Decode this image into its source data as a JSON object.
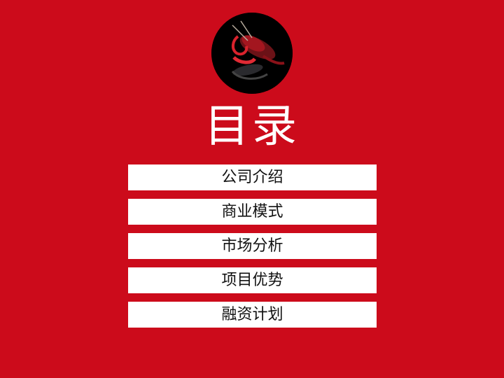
{
  "slide": {
    "title": "目录",
    "logo_icon": "crayfish-icon",
    "background_color": "#cc0b1b"
  },
  "menu": {
    "items": [
      {
        "label": "公司介绍"
      },
      {
        "label": "商业模式"
      },
      {
        "label": "市场分析"
      },
      {
        "label": "项目优势"
      },
      {
        "label": "融资计划"
      }
    ]
  }
}
